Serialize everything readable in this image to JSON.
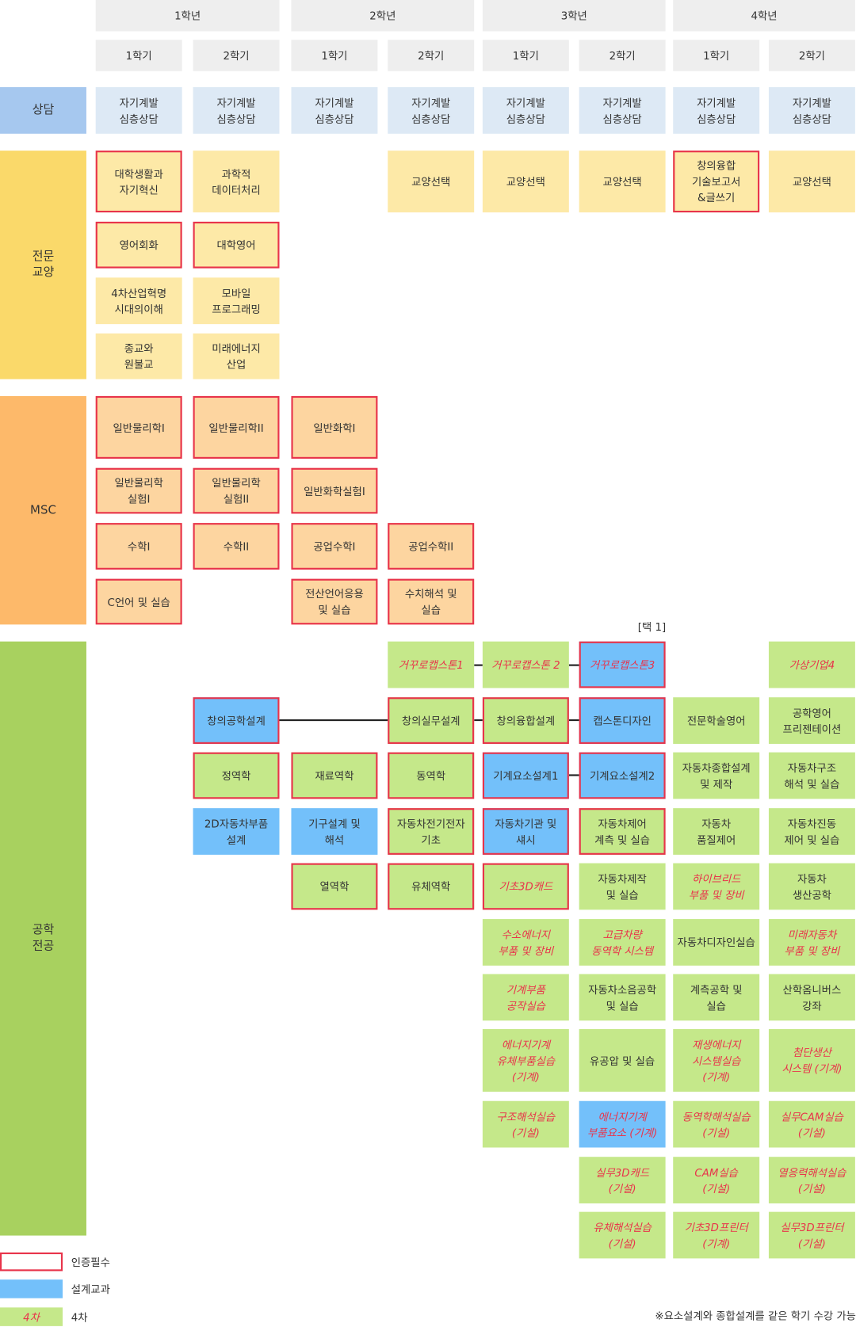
{
  "header": {
    "years": [
      "1학년",
      "2학년",
      "3학년",
      "4학년"
    ],
    "semesters": [
      "1학기",
      "2학기",
      "1학기",
      "2학기",
      "1학기",
      "2학기",
      "1학기",
      "2학기"
    ]
  },
  "sections": [
    {
      "label": "상담",
      "rows": [
        [
          {
            "text": "자기계발\n심층상담"
          },
          {
            "text": "자기계발\n심층상담"
          },
          {
            "text": "자기계발\n심층상담"
          },
          {
            "text": "자기계발\n심층상담"
          },
          {
            "text": "자기계발\n심층상담"
          },
          {
            "text": "자기계발\n심층상담"
          },
          {
            "text": "자기계발\n심층상담"
          },
          {
            "text": "자기계발\n심층상담"
          }
        ]
      ]
    },
    {
      "label": "전문\n교양",
      "rows": [
        [
          {
            "text": "대학생활과\n자기혁신",
            "required": true
          },
          {
            "text": "과학적\n데이터처리"
          },
          null,
          {
            "text": "교양선택"
          },
          {
            "text": "교양선택"
          },
          {
            "text": "교양선택"
          },
          {
            "text": "창의융합\n기술보고서\n&글쓰기",
            "required": true
          },
          {
            "text": "교양선택"
          }
        ],
        [
          {
            "text": "영어회화",
            "required": true
          },
          {
            "text": "대학영어",
            "required": true
          },
          null,
          null,
          null,
          null,
          null,
          null
        ],
        [
          {
            "text": "4차산업혁명\n시대의이해"
          },
          {
            "text": "모바일\n프로그래밍"
          },
          null,
          null,
          null,
          null,
          null,
          null
        ],
        [
          {
            "text": "종교와\n원불교"
          },
          {
            "text": "미래에너지\n산업"
          },
          null,
          null,
          null,
          null,
          null,
          null
        ]
      ]
    },
    {
      "label": "MSC",
      "rows": [
        [
          {
            "text": "일반물리학I",
            "required": true
          },
          {
            "text": "일반물리학II",
            "required": true
          },
          {
            "text": "일반화학I",
            "required": true
          },
          null,
          null,
          null,
          null,
          null
        ],
        [
          {
            "text": "일반물리학\n실험I",
            "required": true
          },
          {
            "text": "일반물리학\n실험II",
            "required": true
          },
          {
            "text": "일반화학실험I",
            "required": true
          },
          null,
          null,
          null,
          null,
          null
        ],
        [
          {
            "text": "수학I",
            "required": true
          },
          {
            "text": "수학II",
            "required": true
          },
          {
            "text": "공업수학I",
            "required": true
          },
          {
            "text": "공업수학II",
            "required": true
          },
          null,
          null,
          null,
          null
        ],
        [
          {
            "text": "C언어 및 실습",
            "required": true
          },
          null,
          {
            "text": "전산언어응용\n및 실습",
            "required": true
          },
          {
            "text": "수치해석 및\n실습",
            "required": true
          },
          null,
          null,
          null,
          null
        ]
      ]
    },
    {
      "label": "공학\n전공",
      "rows": [
        [
          null,
          null,
          null,
          {
            "text": "거꾸로캡스톤1",
            "fourth": true
          },
          {
            "text": "거꾸로캡스톤 2",
            "fourth": true
          },
          {
            "text": "거꾸로캡스톤3",
            "fourth": true,
            "design": true,
            "required": true
          },
          null,
          {
            "text": "가상기업4",
            "fourth": true
          }
        ],
        [
          null,
          {
            "text": "창의공학설계",
            "design": true,
            "required": true
          },
          null,
          {
            "text": "창의실무설계",
            "required": true
          },
          {
            "text": "창의융합설계",
            "required": true
          },
          {
            "text": "캡스톤디자인",
            "design": true,
            "required": true
          },
          {
            "text": "전문학술영어"
          },
          {
            "text": "공학영어\n프리젠테이션"
          }
        ],
        [
          null,
          {
            "text": "정역학",
            "required": true
          },
          {
            "text": "재료역학",
            "required": true
          },
          {
            "text": "동역학",
            "required": true
          },
          {
            "text": "기계요소설계1",
            "design": true,
            "required": true
          },
          {
            "text": "기계요소설계2",
            "design": true,
            "required": true
          },
          {
            "text": "자동차종합설계\n및 제작"
          },
          {
            "text": "자동차구조\n해석 및 실습"
          }
        ],
        [
          null,
          {
            "text": "2D자동차부품\n설계",
            "design": true
          },
          {
            "text": "기구설계 및\n해석",
            "design": true
          },
          {
            "text": "자동차전기전자\n기초",
            "required": true
          },
          {
            "text": "자동차기관 및\n섀시",
            "design": true,
            "required": true
          },
          {
            "text": "자동차제어\n계측 및 실습",
            "required": true
          },
          {
            "text": "자동차\n품질제어"
          },
          {
            "text": "자동차진동\n제어 및 실습"
          }
        ],
        [
          null,
          null,
          {
            "text": "열역학",
            "required": true
          },
          {
            "text": "유체역학",
            "required": true
          },
          {
            "text": "기초3D캐드",
            "required": true,
            "fourth": true
          },
          {
            "text": "자동차제작\n및 실습"
          },
          {
            "text": "하이브리드\n부품 및 장비",
            "fourth": true
          },
          {
            "text": "자동차\n생산공학"
          }
        ],
        [
          null,
          null,
          null,
          null,
          {
            "text": "수소에너지\n부품 및 장비",
            "fourth": true
          },
          {
            "text": "고급차량\n동역학 시스템",
            "fourth": true
          },
          {
            "text": "자동차디자인실습"
          },
          {
            "text": "미래자동차\n부품 및 장비",
            "fourth": true
          }
        ],
        [
          null,
          null,
          null,
          null,
          {
            "text": "기계부품\n공작실습",
            "fourth": true
          },
          {
            "text": "자동차소음공학\n및 실습"
          },
          {
            "text": "계측공학 및\n실습"
          },
          {
            "text": "산학옴니버스\n강좌"
          }
        ],
        [
          null,
          null,
          null,
          null,
          {
            "text": "에너지기계\n유체부품실습\n(기계)",
            "fourth": true
          },
          {
            "text": "유공압 및 실습"
          },
          {
            "text": "재생에너지\n시스템실습\n(기계)",
            "fourth": true
          },
          {
            "text": "첨단생산\n시스템 (기계)",
            "fourth": true
          }
        ],
        [
          null,
          null,
          null,
          null,
          {
            "text": "구조해석실습\n(기설)",
            "fourth": true
          },
          {
            "text": "에너지기계\n부품요소 (기계)",
            "fourth": true,
            "design": true
          },
          {
            "text": "동역학해석실습\n(기설)",
            "fourth": true
          },
          {
            "text": "실무CAM실습\n(기설)",
            "fourth": true
          }
        ],
        [
          null,
          null,
          null,
          null,
          null,
          {
            "text": "실무3D캐드\n(기설)",
            "fourth": true
          },
          {
            "text": "CAM실습\n(기설)",
            "fourth": true
          },
          {
            "text": "열응력해석실습\n(기설)",
            "fourth": true
          }
        ],
        [
          null,
          null,
          null,
          null,
          null,
          {
            "text": "유체해석실습\n(기설)",
            "fourth": true
          },
          {
            "text": "기초3D프린터\n(기계)",
            "fourth": true
          },
          {
            "text": "실무3D프린터\n(기설)",
            "fourth": true
          }
        ]
      ]
    }
  ],
  "select_note": "[택 1]",
  "legend": [
    {
      "label": "인증필수",
      "required": true
    },
    {
      "label": "설계교과",
      "design": true
    },
    {
      "sample": "4차",
      "label": "4차",
      "fourth": true
    }
  ],
  "footnote": "※요소설계와 종합설계를 같은 학기 수강 가능"
}
